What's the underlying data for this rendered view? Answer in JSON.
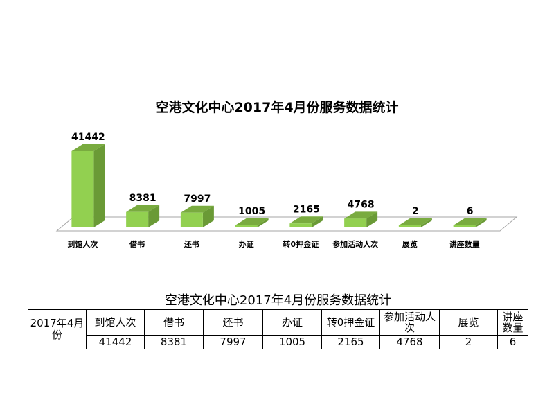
{
  "chart_data": {
    "type": "bar",
    "title": "空港文化中心2017年4月份服务数据统计",
    "categories": [
      "到馆人次",
      "借书",
      "还书",
      "办证",
      "转0押金证",
      "参加活动人次",
      "展览",
      "讲座数量"
    ],
    "values": [
      41442,
      8381,
      7997,
      1005,
      2165,
      4768,
      2,
      6
    ],
    "value_labels": [
      "41442",
      "8381",
      "7997",
      "1005",
      "2165",
      "4768",
      "2",
      "6"
    ],
    "grid": false,
    "legend": "none",
    "colors": {
      "bar_front": "#92d050",
      "bar_side": "#6a9a36",
      "bar_top": "#79ab3f",
      "floor": "#ffffff",
      "floor_edge": "#a6a6a6"
    }
  },
  "table": {
    "title": "空港文化中心2017年4月份服务数据统计",
    "row_label": "2017年4月份",
    "headers": [
      "到馆人次",
      "借书",
      "还书",
      "办证",
      "转0押金证",
      "参加活动人次",
      "展览",
      "讲座数量"
    ],
    "values": [
      "41442",
      "8381",
      "7997",
      "1005",
      "2165",
      "4768",
      "2",
      "6"
    ]
  }
}
